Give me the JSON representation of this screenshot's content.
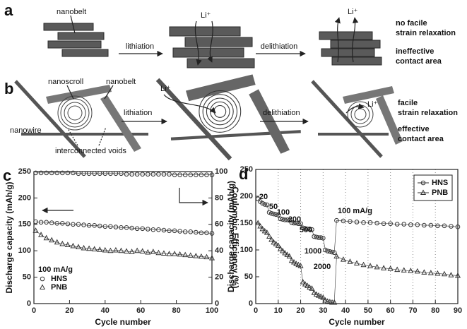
{
  "panel_a": {
    "label": "a",
    "nanobelt": "nanobelt",
    "lithiation": "lithiation",
    "delithiation": "delithiation",
    "li_1": "Li⁺",
    "li_2": "Li⁺",
    "result": [
      "no facile",
      "strain relaxation",
      "ineffective",
      "contact area"
    ]
  },
  "panel_b": {
    "label": "b",
    "nanoscroll": "nanoscroll",
    "nanobelt": "nanobelt",
    "nanowire": "nanowire",
    "voids": "interconnected voids",
    "lithiation": "lithiation",
    "delithiation": "delithiation",
    "li_1": "Li⁺",
    "li_2": "Li⁺",
    "result": [
      "facile",
      "strain relaxation",
      "effective",
      "contact area"
    ]
  },
  "chart_data": [
    {
      "type": "line",
      "panel_label": "c",
      "xlabel": "Cycle number",
      "ylabel": "Discharge capacity (mAh/g)",
      "y2label": "Coulombic Efficiency (%)",
      "legend_title": "100 mA/g",
      "legend": "lower left",
      "x": [
        1,
        4,
        7,
        10,
        13,
        16,
        19,
        22,
        25,
        28,
        31,
        34,
        37,
        40,
        43,
        46,
        49,
        52,
        55,
        58,
        61,
        64,
        67,
        70,
        73,
        76,
        79,
        82,
        85,
        88,
        91,
        94,
        97,
        100
      ],
      "series": [
        {
          "name": "HNS",
          "marker": "circle",
          "color": "#333333",
          "values": [
            155,
            154,
            154,
            153,
            152,
            152,
            151,
            150,
            150,
            149,
            148,
            148,
            147,
            146,
            146,
            145,
            144,
            144,
            143,
            142,
            142,
            141,
            140,
            140,
            139,
            138,
            138,
            137,
            136,
            136,
            135,
            134,
            134,
            133
          ]
        },
        {
          "name": "PNB",
          "marker": "triangle",
          "color": "#333333",
          "values": [
            138,
            130,
            124,
            120,
            116,
            113,
            111,
            109,
            107,
            105,
            104,
            103,
            102,
            101,
            100,
            101,
            100,
            99,
            98,
            100,
            99,
            97,
            98,
            96,
            95,
            94,
            94,
            93,
            92,
            91,
            90,
            89,
            88,
            86
          ]
        },
        {
          "marker": "circle",
          "color": "#333333",
          "axis": "y2",
          "values": [
            99,
            99,
            99,
            99,
            99,
            99,
            99,
            99,
            98.5,
            98.5,
            98.5,
            98.5,
            98.5,
            98.5,
            98.5,
            98.5,
            98.5,
            98,
            98,
            98,
            98,
            98,
            98,
            98,
            98,
            98,
            97.5,
            97.5,
            97.5,
            97.5,
            97.5,
            97.5,
            97.5,
            97.5
          ]
        }
      ],
      "xlim": [
        0,
        100
      ],
      "xticks": [
        0,
        20,
        40,
        60,
        80,
        100
      ],
      "ylim": [
        0,
        250
      ],
      "yticks": [
        0,
        50,
        100,
        150,
        200,
        250
      ],
      "y2lim": [
        0,
        100
      ],
      "y2ticks": [
        0,
        20,
        40,
        60,
        80,
        100
      ]
    },
    {
      "type": "line",
      "panel_label": "d",
      "xlabel": "Cycle number",
      "ylabel": "Discharge capacity (mAh/g)",
      "legend": "upper right",
      "xgrid": "dotted",
      "annotations": [
        "20",
        "50",
        "100",
        "200",
        "500",
        "1000",
        "2000",
        "100 mA/g"
      ],
      "x": [
        1,
        2,
        3,
        4,
        5,
        6,
        7,
        8,
        9,
        10,
        11,
        12,
        13,
        14,
        15,
        16,
        17,
        18,
        19,
        20,
        21,
        22,
        23,
        24,
        25,
        26,
        27,
        28,
        29,
        30,
        31,
        32,
        33,
        34,
        35,
        36,
        39,
        42,
        45,
        48,
        51,
        54,
        57,
        60,
        63,
        66,
        69,
        72,
        75,
        78,
        81,
        84,
        87,
        90
      ],
      "series": [
        {
          "name": "HNS",
          "marker": "circle",
          "color": "#333333",
          "values": [
            195,
            190,
            187,
            185,
            184,
            170,
            168,
            167,
            166,
            165,
            158,
            157,
            156,
            156,
            155,
            151,
            150,
            150,
            149,
            149,
            141,
            140,
            139,
            139,
            138,
            125,
            124,
            123,
            123,
            122,
            100,
            98,
            97,
            96,
            95,
            155,
            154,
            153,
            152,
            151,
            151,
            150,
            149,
            149,
            148,
            148,
            147,
            147,
            146,
            146,
            145,
            145,
            144,
            143
          ]
        },
        {
          "name": "PNB",
          "marker": "triangle",
          "color": "#333333",
          "values": [
            150,
            144,
            139,
            135,
            132,
            125,
            119,
            114,
            111,
            108,
            102,
            98,
            94,
            91,
            88,
            80,
            77,
            74,
            72,
            70,
            40,
            36,
            33,
            30,
            28,
            20,
            17,
            15,
            13,
            11,
            6,
            4,
            3,
            2,
            2,
            88,
            82,
            78,
            75,
            72,
            70,
            68,
            66,
            65,
            63,
            62,
            61,
            60,
            58,
            57,
            56,
            55,
            53,
            52
          ]
        }
      ],
      "xlim": [
        0,
        90
      ],
      "xticks": [
        0,
        10,
        20,
        30,
        40,
        50,
        60,
        70,
        80,
        90
      ],
      "ylim": [
        0,
        250
      ],
      "yticks": [
        0,
        50,
        100,
        150,
        200,
        250
      ]
    }
  ]
}
